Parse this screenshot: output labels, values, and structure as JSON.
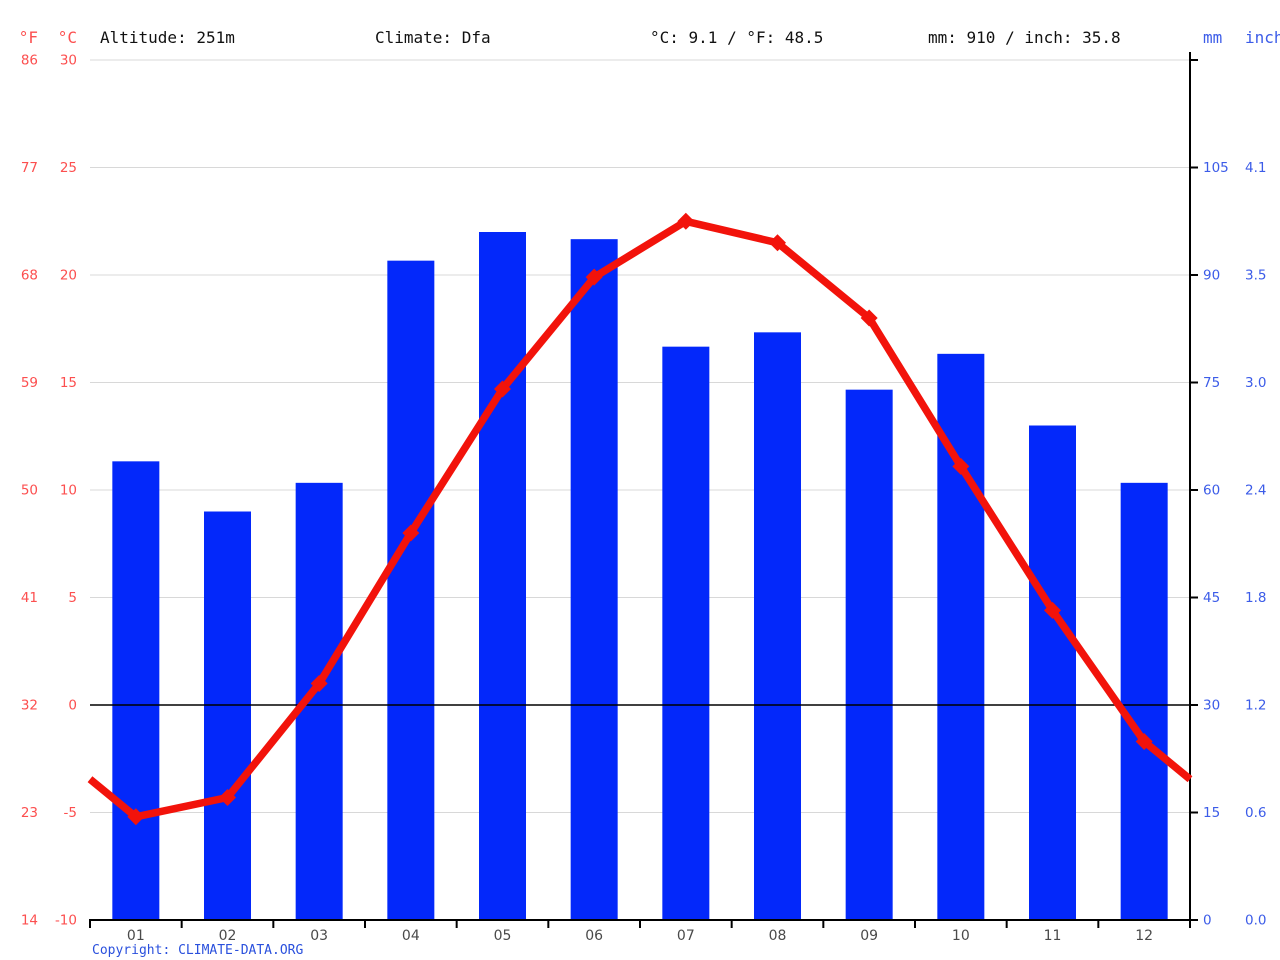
{
  "header": {
    "temp_unit_f": "°F",
    "temp_unit_c": "°C",
    "altitude": "Altitude: 251m",
    "climate": "Climate: Dfa",
    "temp_summary": "°C: 9.1 / °F: 48.5",
    "precip_summary": "mm: 910 / inch: 35.8",
    "precip_unit_mm": "mm",
    "precip_unit_inch": "inch"
  },
  "footer": {
    "copyright": "Copyright: CLIMATE-DATA.ORG"
  },
  "colors": {
    "bar_blue": "#0328fa",
    "line_red": "#f2130b",
    "axis_label_red": "#fc4f4f",
    "axis_label_blue": "#3c5ce8",
    "grid_gray": "#d8d8d8",
    "zero_line_black": "#000000",
    "axis_black": "#000000",
    "month_label_gray": "#4a4a4a",
    "copyright_blue": "#2a50dd"
  },
  "chart_data": {
    "type": "bar+line",
    "title": "",
    "months": [
      "01",
      "02",
      "03",
      "04",
      "05",
      "06",
      "07",
      "08",
      "09",
      "10",
      "11",
      "12"
    ],
    "series": [
      {
        "name": "precipitation",
        "type": "bar",
        "unit": "mm",
        "values": [
          64,
          57,
          61,
          92,
          96,
          95,
          80,
          82,
          74,
          79,
          69,
          61
        ]
      },
      {
        "name": "temperature",
        "type": "line",
        "unit": "°C",
        "values": [
          -5.2,
          -4.3,
          1.0,
          8.0,
          14.7,
          19.9,
          22.5,
          21.5,
          18.0,
          11.1,
          4.4,
          -1.7
        ]
      }
    ],
    "temp_axis": {
      "f": [
        86,
        77,
        68,
        59,
        50,
        41,
        32,
        23,
        14
      ],
      "c": [
        30,
        25,
        20,
        15,
        10,
        5,
        0,
        -5,
        -10
      ]
    },
    "precip_axis": {
      "mm": [
        105,
        90,
        75,
        60,
        45,
        30,
        15,
        0
      ],
      "inch": [
        "4.1",
        "3.5",
        "3.0",
        "2.4",
        "1.8",
        "1.2",
        "0.6",
        "0.0"
      ]
    },
    "c_range": [
      -10,
      30
    ],
    "mm_range": [
      0,
      120
    ],
    "grid": true,
    "zero_line_c": 0,
    "annual_mean_temp_c": 9.1,
    "annual_mean_temp_f": 48.5,
    "annual_precip_mm": 910,
    "annual_precip_inch": 35.8
  }
}
